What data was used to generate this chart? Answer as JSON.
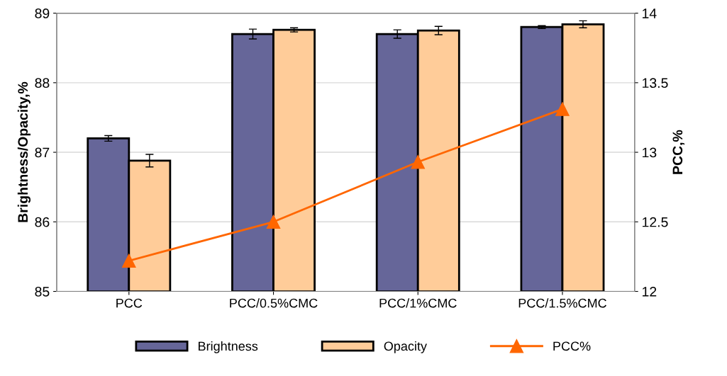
{
  "chart_data": {
    "type": "bar",
    "categories": [
      "PCC",
      "PCC/0.5%CMC",
      "PCC/1%CMC",
      "PCC/1.5%CMC"
    ],
    "ylabel": "Brightness/Opacity,%",
    "y2label": "PCC,%",
    "ylim": [
      85,
      89
    ],
    "yticks": [
      85,
      86,
      87,
      88,
      89
    ],
    "y2lim": [
      12,
      14
    ],
    "y2ticks": [
      12,
      12.5,
      13,
      13.5,
      14
    ],
    "grid": "y",
    "legend": "bottom",
    "series": [
      {
        "name": "Brightness",
        "color": "#666699",
        "values": [
          87.2,
          88.7,
          88.7,
          88.8
        ],
        "errors": [
          0.04,
          0.07,
          0.06,
          0.02
        ]
      },
      {
        "name": "Opacity",
        "color": "#ffcc99",
        "values": [
          86.88,
          88.76,
          88.75,
          88.84
        ],
        "errors": [
          0.09,
          0.03,
          0.06,
          0.05
        ]
      },
      {
        "name": "PCC%",
        "type": "line",
        "axis": "y2",
        "color": "#ff6600",
        "marker": "triangle",
        "values": [
          12.22,
          12.5,
          12.93,
          13.31
        ]
      }
    ]
  }
}
